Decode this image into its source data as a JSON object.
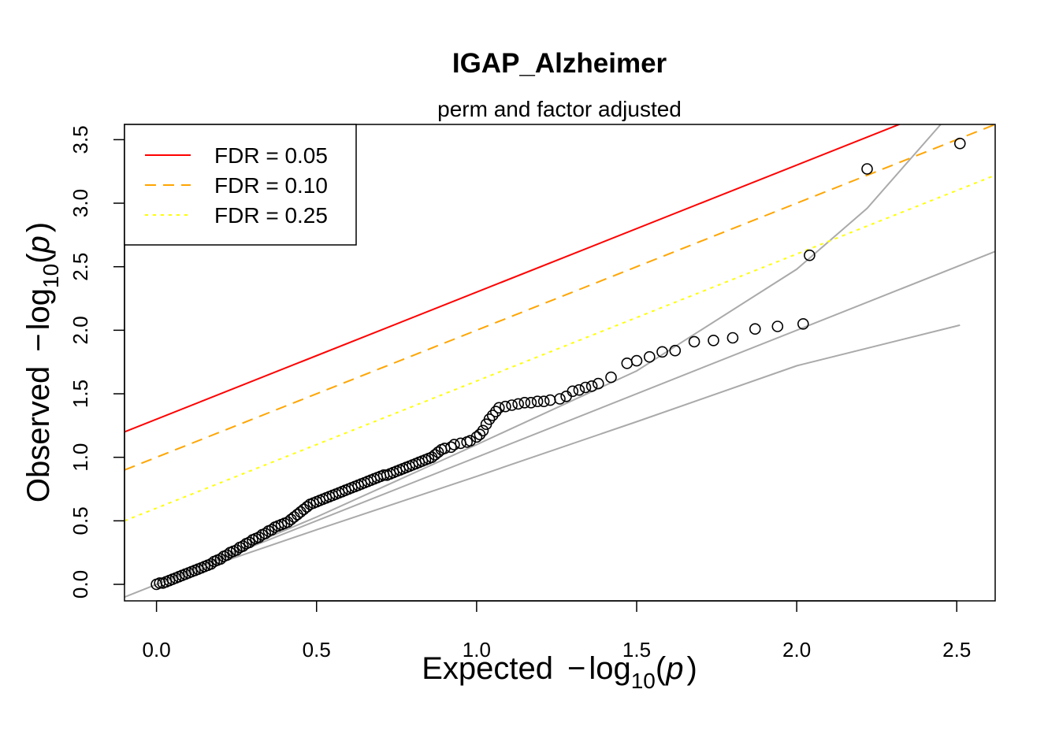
{
  "chart_data": {
    "type": "scatter",
    "title": "IGAP_Alzheimer",
    "subtitle": "perm and factor adjusted",
    "xlabel": {
      "prefix": "Expected",
      "minus": "−",
      "log": "log",
      "base": "10",
      "open": "(",
      "var": "p",
      "close": ")"
    },
    "ylabel": {
      "prefix": "Observed",
      "minus": "−",
      "log": "log",
      "base": "10",
      "open": "(",
      "var": "p",
      "close": ")"
    },
    "xlim": [
      -0.1,
      2.62
    ],
    "ylim": [
      -0.13,
      3.62
    ],
    "xticks": [
      0.0,
      0.5,
      1.0,
      1.5,
      2.0,
      2.5
    ],
    "xtick_labels": [
      "0.0",
      "0.5",
      "1.0",
      "1.5",
      "2.0",
      "2.5"
    ],
    "yticks": [
      0.0,
      0.5,
      1.0,
      1.5,
      2.0,
      2.5,
      3.0,
      3.5
    ],
    "ytick_labels": [
      "0.0",
      "0.5",
      "1.0",
      "1.5",
      "2.0",
      "2.5",
      "3.0",
      "3.5"
    ],
    "legend": {
      "position": "top-left",
      "entries": [
        {
          "label": "FDR = 0.05",
          "color": "#ff0000",
          "dash": "solid"
        },
        {
          "label": "FDR = 0.10",
          "color": "#ffa500",
          "dash": "dashed"
        },
        {
          "label": "FDR = 0.25",
          "color": "#ffff00",
          "dash": "dotted"
        }
      ]
    },
    "fdr_lines": [
      {
        "label": "FDR = 0.05",
        "intercept": 1.3,
        "slope": 1.0,
        "color": "#ff0000",
        "dash": "solid"
      },
      {
        "label": "FDR = 0.10",
        "intercept": 1.0,
        "slope": 1.0,
        "color": "#ffa500",
        "dash": "dashed"
      },
      {
        "label": "FDR = 0.25",
        "intercept": 0.6,
        "slope": 1.0,
        "color": "#ffff00",
        "dash": "dotted"
      }
    ],
    "reference_line": {
      "intercept": 0.0,
      "slope": 1.0,
      "color": "#aaaaaa"
    },
    "confidence_upper": [
      [
        0.0,
        0.0
      ],
      [
        0.5,
        0.53
      ],
      [
        1.0,
        1.1
      ],
      [
        1.5,
        1.68
      ],
      [
        2.0,
        2.48
      ],
      [
        2.22,
        2.96
      ],
      [
        2.45,
        3.62
      ]
    ],
    "confidence_lower": [
      [
        0.0,
        0.0
      ],
      [
        0.5,
        0.43
      ],
      [
        1.0,
        0.85
      ],
      [
        1.5,
        1.28
      ],
      [
        2.0,
        1.72
      ],
      [
        2.51,
        2.04
      ]
    ],
    "points": [
      [
        0.0,
        0.0
      ],
      [
        0.01,
        0.01
      ],
      [
        0.02,
        0.01
      ],
      [
        0.03,
        0.02
      ],
      [
        0.04,
        0.03
      ],
      [
        0.05,
        0.04
      ],
      [
        0.06,
        0.05
      ],
      [
        0.07,
        0.06
      ],
      [
        0.08,
        0.07
      ],
      [
        0.09,
        0.08
      ],
      [
        0.1,
        0.09
      ],
      [
        0.11,
        0.1
      ],
      [
        0.12,
        0.11
      ],
      [
        0.13,
        0.12
      ],
      [
        0.14,
        0.13
      ],
      [
        0.15,
        0.14
      ],
      [
        0.16,
        0.15
      ],
      [
        0.17,
        0.16
      ],
      [
        0.18,
        0.18
      ],
      [
        0.19,
        0.19
      ],
      [
        0.2,
        0.2
      ],
      [
        0.21,
        0.22
      ],
      [
        0.22,
        0.23
      ],
      [
        0.23,
        0.25
      ],
      [
        0.24,
        0.26
      ],
      [
        0.25,
        0.27
      ],
      [
        0.26,
        0.29
      ],
      [
        0.27,
        0.3
      ],
      [
        0.28,
        0.32
      ],
      [
        0.29,
        0.33
      ],
      [
        0.3,
        0.35
      ],
      [
        0.31,
        0.36
      ],
      [
        0.32,
        0.37
      ],
      [
        0.33,
        0.39
      ],
      [
        0.34,
        0.4
      ],
      [
        0.35,
        0.42
      ],
      [
        0.36,
        0.43
      ],
      [
        0.37,
        0.45
      ],
      [
        0.38,
        0.46
      ],
      [
        0.39,
        0.47
      ],
      [
        0.4,
        0.48
      ],
      [
        0.41,
        0.49
      ],
      [
        0.42,
        0.51
      ],
      [
        0.43,
        0.53
      ],
      [
        0.44,
        0.55
      ],
      [
        0.45,
        0.57
      ],
      [
        0.46,
        0.59
      ],
      [
        0.47,
        0.61
      ],
      [
        0.48,
        0.63
      ],
      [
        0.49,
        0.64
      ],
      [
        0.5,
        0.65
      ],
      [
        0.51,
        0.66
      ],
      [
        0.52,
        0.67
      ],
      [
        0.53,
        0.68
      ],
      [
        0.54,
        0.69
      ],
      [
        0.55,
        0.7
      ],
      [
        0.56,
        0.71
      ],
      [
        0.57,
        0.72
      ],
      [
        0.58,
        0.73
      ],
      [
        0.59,
        0.74
      ],
      [
        0.6,
        0.75
      ],
      [
        0.61,
        0.76
      ],
      [
        0.62,
        0.77
      ],
      [
        0.63,
        0.78
      ],
      [
        0.64,
        0.79
      ],
      [
        0.65,
        0.8
      ],
      [
        0.66,
        0.81
      ],
      [
        0.67,
        0.82
      ],
      [
        0.68,
        0.83
      ],
      [
        0.69,
        0.84
      ],
      [
        0.7,
        0.85
      ],
      [
        0.71,
        0.86
      ],
      [
        0.72,
        0.86
      ],
      [
        0.73,
        0.87
      ],
      [
        0.74,
        0.88
      ],
      [
        0.75,
        0.89
      ],
      [
        0.76,
        0.9
      ],
      [
        0.77,
        0.91
      ],
      [
        0.78,
        0.92
      ],
      [
        0.79,
        0.93
      ],
      [
        0.8,
        0.94
      ],
      [
        0.81,
        0.95
      ],
      [
        0.82,
        0.96
      ],
      [
        0.83,
        0.97
      ],
      [
        0.84,
        0.98
      ],
      [
        0.85,
        0.99
      ],
      [
        0.86,
        1.0
      ],
      [
        0.87,
        1.02
      ],
      [
        0.88,
        1.04
      ],
      [
        0.89,
        1.06
      ],
      [
        0.9,
        1.07
      ],
      [
        0.92,
        1.08
      ],
      [
        0.93,
        1.1
      ],
      [
        0.95,
        1.11
      ],
      [
        0.97,
        1.12
      ],
      [
        0.98,
        1.13
      ],
      [
        1.0,
        1.16
      ],
      [
        1.01,
        1.18
      ],
      [
        1.02,
        1.21
      ],
      [
        1.03,
        1.26
      ],
      [
        1.04,
        1.3
      ],
      [
        1.05,
        1.33
      ],
      [
        1.06,
        1.36
      ],
      [
        1.07,
        1.39
      ],
      [
        1.09,
        1.4
      ],
      [
        1.11,
        1.41
      ],
      [
        1.13,
        1.42
      ],
      [
        1.15,
        1.43
      ],
      [
        1.17,
        1.43
      ],
      [
        1.19,
        1.44
      ],
      [
        1.21,
        1.44
      ],
      [
        1.23,
        1.45
      ],
      [
        1.26,
        1.46
      ],
      [
        1.28,
        1.48
      ],
      [
        1.3,
        1.52
      ],
      [
        1.32,
        1.53
      ],
      [
        1.34,
        1.55
      ],
      [
        1.36,
        1.56
      ],
      [
        1.38,
        1.58
      ],
      [
        1.42,
        1.63
      ],
      [
        1.47,
        1.74
      ],
      [
        1.5,
        1.76
      ],
      [
        1.54,
        1.79
      ],
      [
        1.58,
        1.83
      ],
      [
        1.62,
        1.84
      ],
      [
        1.68,
        1.91
      ],
      [
        1.74,
        1.92
      ],
      [
        1.8,
        1.94
      ],
      [
        1.87,
        2.01
      ],
      [
        1.94,
        2.03
      ],
      [
        2.02,
        2.05
      ],
      [
        2.04,
        2.59
      ],
      [
        2.22,
        3.27
      ],
      [
        2.51,
        3.47
      ]
    ]
  }
}
